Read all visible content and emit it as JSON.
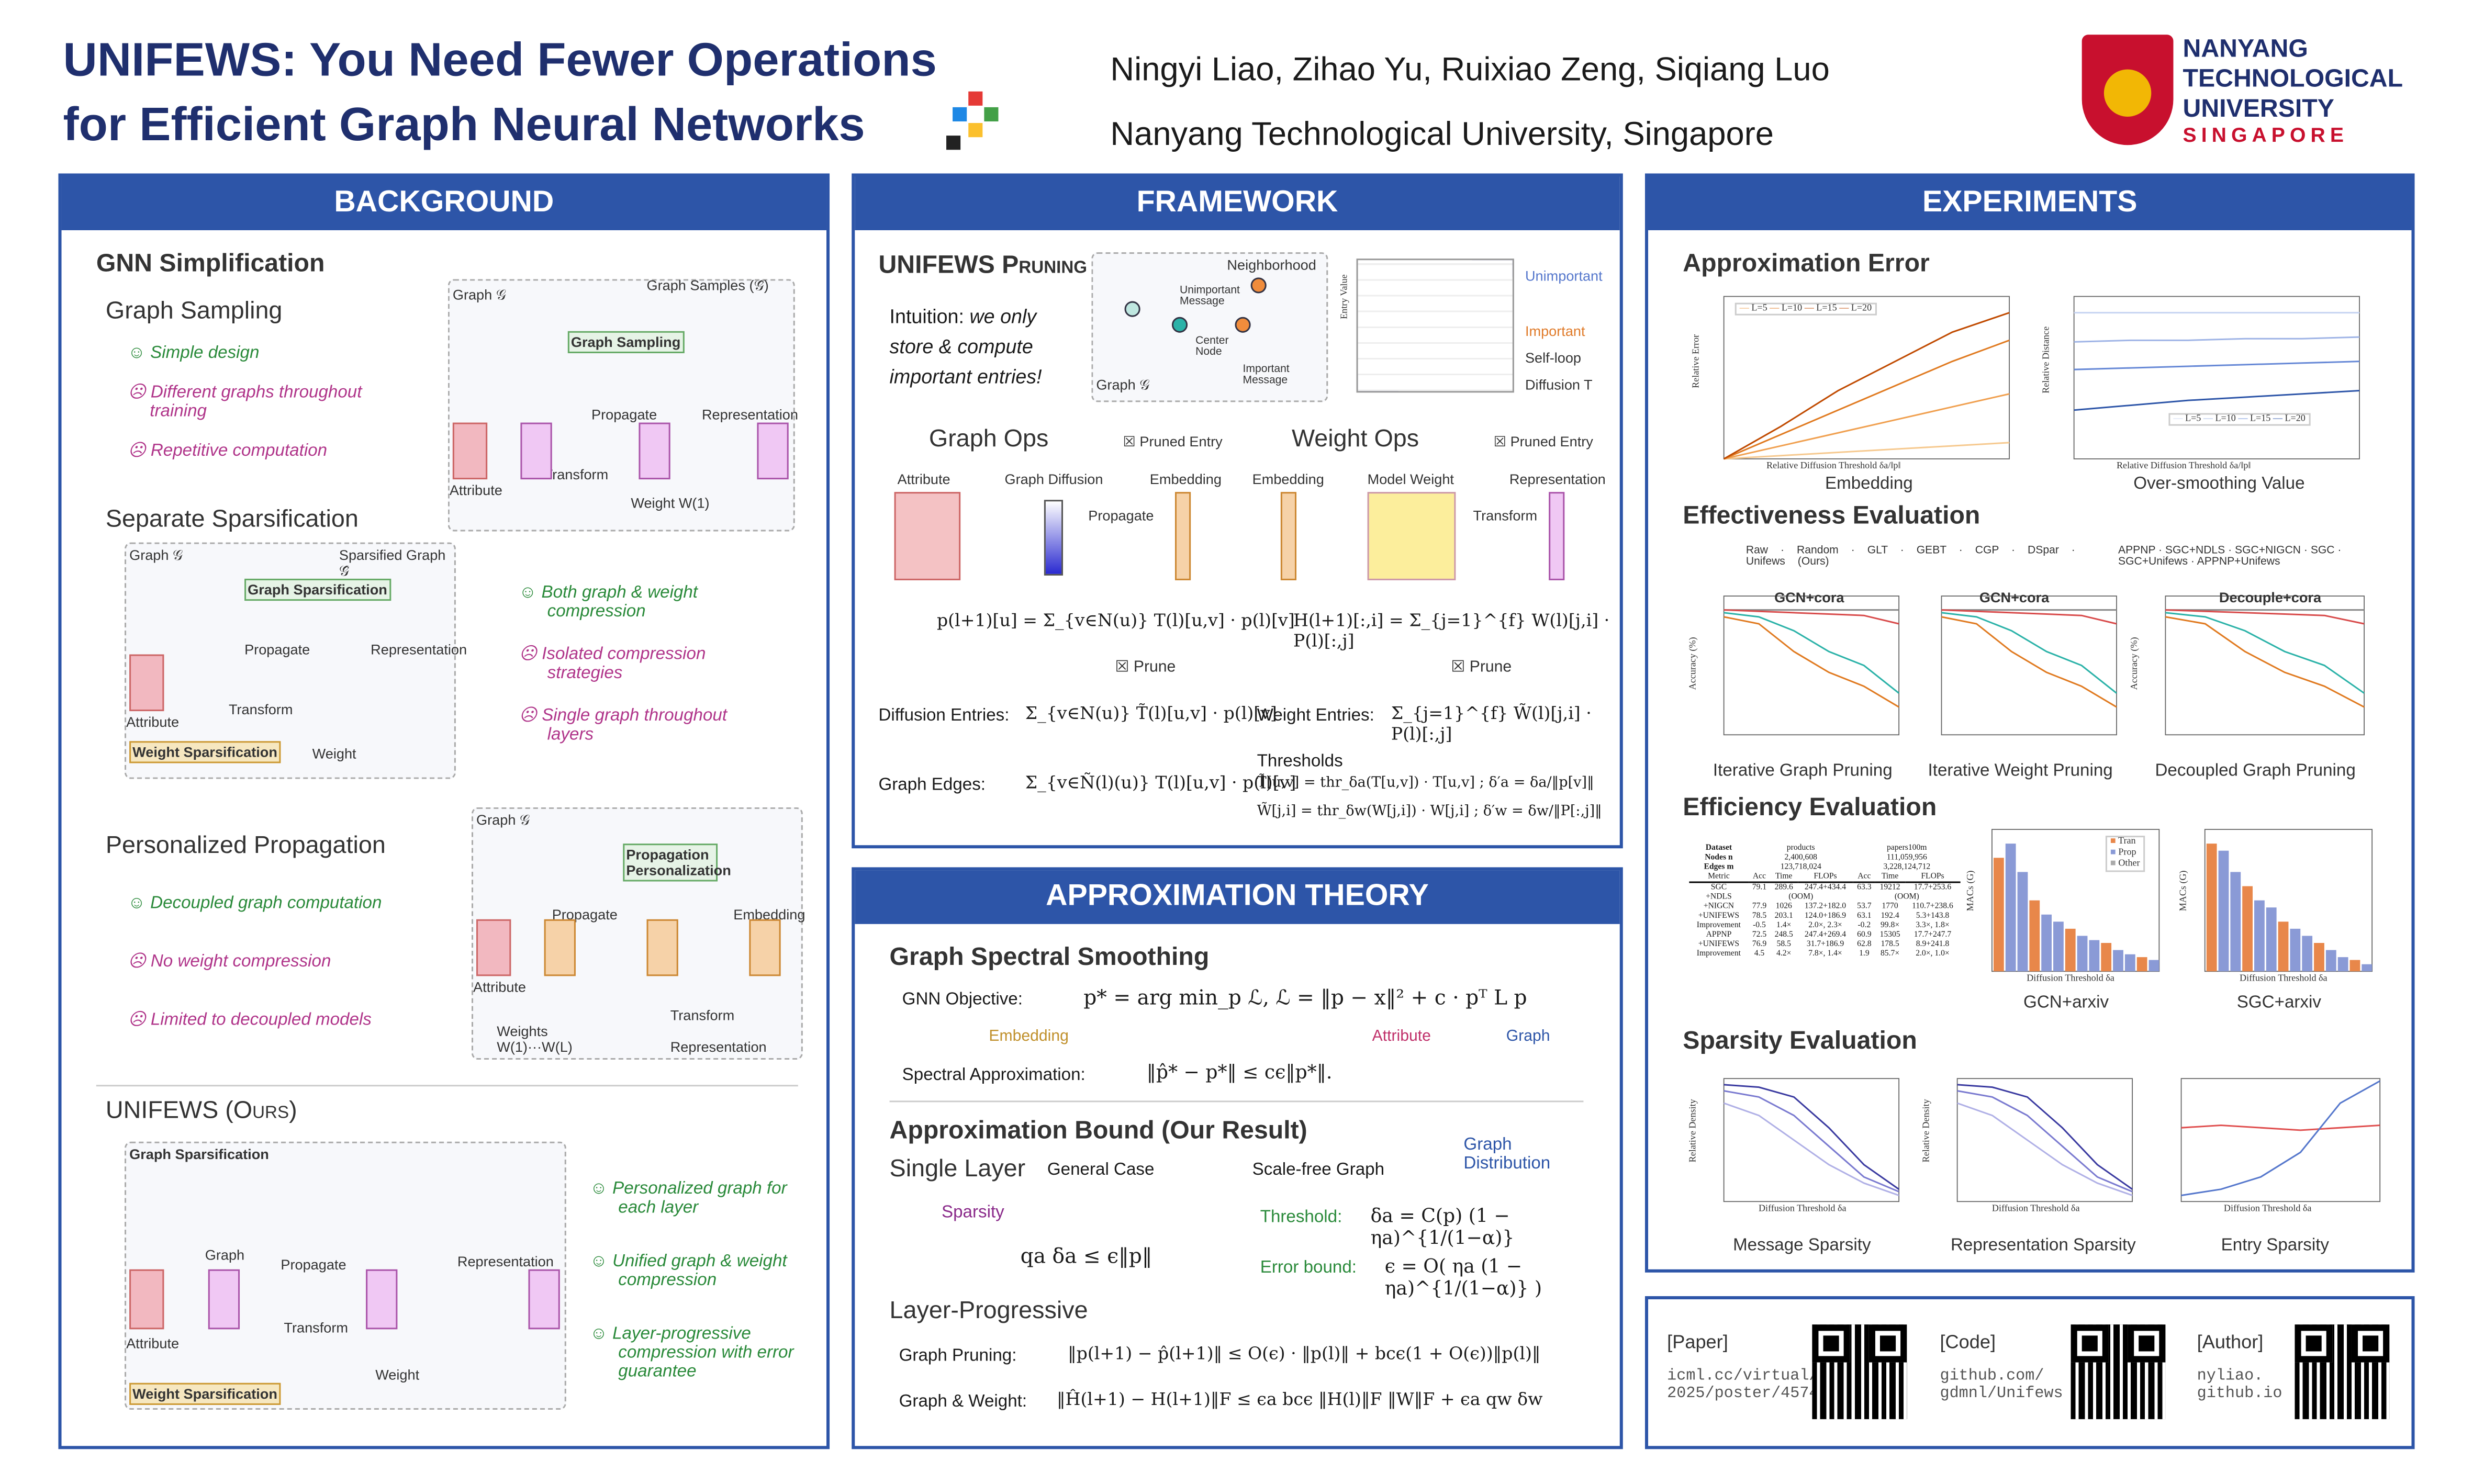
{
  "header": {
    "title_line1": "UNIFEWS: You Need Fewer Operations",
    "title_line2": "for Efficient Graph Neural Networks",
    "authors": "Ningyi Liao,  Zihao Yu,  Ruixiao Zeng,  Siqiang Luo",
    "affiliation": "Nanyang Technological University, Singapore",
    "logo_text": "NANYANG TECHNOLOGICAL UNIVERSITY",
    "logo_sub": "SINGAPORE",
    "colors": {
      "primary": "#2d55a8",
      "title": "#1f2f6e",
      "pro": "#2a8a3a",
      "con": "#b0358a"
    }
  },
  "background": {
    "heading": "BACKGROUND",
    "section": "GNN Simplification",
    "sampling": {
      "title": "Graph Sampling",
      "points": [
        {
          "type": "pro",
          "text": "Simple design"
        },
        {
          "type": "con",
          "text": "Different graphs throughout training"
        },
        {
          "type": "con",
          "text": "Repetitive computation"
        }
      ],
      "fig_labels": [
        "Graph 𝒢",
        "Graph Samples (𝒢̂)",
        "Graph Sampling",
        "Propagate",
        "Representation",
        "Transform",
        "Weight W(1)",
        "Attribute"
      ]
    },
    "separate": {
      "title": "Separate Sparsification",
      "points": [
        {
          "type": "pro",
          "text": "Both graph & weight compression"
        },
        {
          "type": "con",
          "text": "Isolated compression strategies"
        },
        {
          "type": "con",
          "text": "Single graph throughout layers"
        }
      ],
      "fig_labels": [
        "Graph 𝒢",
        "Sparsified Graph 𝒢̂",
        "Graph Sparsification",
        "Weight Sparsification",
        "Propagate",
        "Representation",
        "Transform",
        "Weight",
        "Attribute"
      ]
    },
    "personalized": {
      "title": "Personalized Propagation",
      "points": [
        {
          "type": "pro",
          "text": "Decoupled graph computation"
        },
        {
          "type": "con",
          "text": "No weight compression"
        },
        {
          "type": "con",
          "text": "Limited to decoupled models"
        }
      ],
      "fig_labels": [
        "Graph 𝒢",
        "Propagation Personalization",
        "Propagate",
        "Embedding",
        "Transform",
        "Weights W(1)···W(L)",
        "Representation",
        "Attribute"
      ]
    },
    "ours": {
      "title": "UNIFEWS (Ours)",
      "points": [
        {
          "type": "pro",
          "text": "Personalized graph for each layer"
        },
        {
          "type": "pro",
          "text": "Unified graph & weight compression"
        },
        {
          "type": "pro",
          "text": "Layer-progressive compression with error guarantee"
        }
      ],
      "fig_labels": [
        "Graph Sparsification",
        "Weight Sparsification",
        "Graph",
        "Propagate",
        "Representation",
        "Transform",
        "Weight",
        "Attribute"
      ]
    }
  },
  "framework": {
    "heading": "FRAMEWORK",
    "title": "UNIFEWS Pruning",
    "intuition": {
      "lead": "Intuition:",
      "text": " we only store & compute important entries!"
    },
    "graph_labels": [
      "Neighborhood",
      "Unimportant Message",
      "Center Node",
      "Important Message",
      "Graph 𝒢"
    ],
    "matrix_labels": [
      "Unimportant",
      "Important",
      "Self-loop",
      "Diffusion T",
      "Entry Value"
    ],
    "graph_ops": {
      "title": "Graph Ops",
      "legend": "Pruned Entry",
      "cols": [
        "Attribute",
        "Graph Diffusion",
        "Embedding"
      ],
      "arrow": "Propagate",
      "eq": "p(l+1)[u] = Σ_{v∈N(u)} T(l)[u,v] · p(l)[v]",
      "prune": "Prune",
      "entries_label": "Diffusion Entries:",
      "entries_eq": "Σ_{v∈N(u)} T̃(l)[u,v] · p(l)[v]",
      "edges_label": "Graph Edges:",
      "edges_eq": "Σ_{v∈Ñ(l)(u)} T(l)[u,v] · p(l)[v]"
    },
    "weight_ops": {
      "title": "Weight Ops",
      "legend": "Pruned Entry",
      "cols": [
        "Embedding",
        "Model Weight",
        "Representation"
      ],
      "arrow": "Transform",
      "eq": "H(l+1)[:,i] = Σ_{j=1}^{f} W(l)[j,i] · P(l)[:,j]",
      "prune": "Prune",
      "entries_label": "Weight Entries:",
      "entries_eq": "Σ_{j=1}^{f} W̃(l)[j,i] · P(l)[:,j]",
      "thresholds_label": "Thresholds",
      "th1": "T̃[u,v] = thr_δa(T[u,v]) · T[u,v] ;  δ′a = δa/‖p[v]‖",
      "th2": "W̃[j,i] = thr_δw(W[j,i]) · W[j,i] ;  δ′w = δw/‖P[:,j]‖"
    }
  },
  "theory": {
    "heading": "APPROXIMATION THEORY",
    "smoothing_title": "Graph Spectral Smoothing",
    "objective_label": "GNN Objective:",
    "objective_eq": "p* = arg min_p ℒ,   ℒ = ‖p − x‖² + c · pᵀ L p",
    "ann": [
      "Embedding",
      "Attribute",
      "Graph"
    ],
    "spectral_label": "Spectral Approximation:",
    "spectral_eq": "‖p̂* − p*‖ ≤ cϵ‖p*‖.",
    "bound_title": "Approximation Bound (Our Result)",
    "single_layer": "Single Layer",
    "general": "General Case",
    "scale_free": "Scale-free Graph",
    "graph_distribution": "Graph Distribution",
    "sparsity": "Sparsity",
    "general_eq": "qa δa ≤ ϵ‖p‖",
    "threshold_label": "Threshold:",
    "threshold_eq": "δa = C(p) (1 − ηa)^{1/(1−α)}",
    "error_label": "Error bound:",
    "error_eq": "ϵ = O( ηa (1 − ηa)^{1/(1−α)} )",
    "progressive": "Layer-Progressive",
    "pruning_label": "Graph Pruning:",
    "pruning_eq": "‖p(l+1) − p̂(l+1)‖ ≤ O(ϵ) · ‖p(l)‖ + bcϵ(1 + O(ϵ))‖p(l)‖",
    "gw_label": "Graph & Weight:",
    "gw_eq": "‖Ĥ(l+1) − H(l+1)‖F ≤ ϵa bcϵ ‖H(l)‖F ‖W‖F + ϵa qw δw"
  },
  "experiments": {
    "heading": "EXPERIMENTS",
    "approx": {
      "title": "Approximation Error",
      "captions": [
        "Embedding",
        "Over-smoothing Value"
      ],
      "xlabel": "Relative Diffusion Threshold δa/‖p‖",
      "ylabels": [
        "Relative Error",
        "Relative Distance"
      ],
      "legend": [
        "L=5",
        "L=10",
        "L=15",
        "L=20"
      ]
    },
    "effectiveness": {
      "title": "Effectiveness Evaluation",
      "legend1": [
        "Raw",
        "Random",
        "GLT",
        "GEBT",
        "CGP",
        "DSpar",
        "Unifews (Ours)"
      ],
      "legend2": [
        "APPNP",
        "SGC+NDLS",
        "SGC+NIGCN",
        "SGC",
        "SGC+Unifews",
        "APPNP+Unifews"
      ],
      "plot_titles": [
        "GCN+cora",
        "GCN+cora",
        "Decouple+cora"
      ],
      "captions": [
        "Iterative Graph Pruning",
        "Iterative Weight Pruning",
        "Decoupled Graph Pruning"
      ],
      "ylabel": "Accuracy (%)"
    },
    "efficiency": {
      "title": "Efficiency Evaluation",
      "table": {
        "head": [
          [
            "Dataset",
            "products",
            "papers100m"
          ],
          [
            "Nodes n",
            "2,400,608",
            "111,059,956"
          ],
          [
            "Edges m",
            "123,718,024",
            "3,228,124,712"
          ]
        ],
        "metric": [
          "Metric",
          "Acc",
          "Time",
          "FLOPs",
          "Acc",
          "Time",
          "FLOPs"
        ],
        "rows": [
          [
            "SGC",
            "79.1",
            "289.6",
            "247.4+434.4",
            "63.3",
            "19212",
            "17.7+253.6"
          ],
          [
            "+NDLS",
            "(OOM)",
            "(OOM)"
          ],
          [
            "+NIGCN",
            "77.9",
            "1026",
            "137.2+182.0",
            "53.7",
            "1770",
            "110.7+238.6"
          ],
          [
            "+UNIFEWS",
            "78.5",
            "203.1",
            "124.0+186.9",
            "63.1",
            "192.4",
            "5.3+143.8"
          ],
          [
            "Improvement",
            "-0.5",
            "1.4×",
            "2.0×, 2.3×",
            "-0.2",
            "99.8×",
            "3.3×, 1.8×"
          ],
          [
            "APPNP",
            "72.5",
            "248.5",
            "247.4+269.4",
            "60.9",
            "15305",
            "17.7+247.7"
          ],
          [
            "+UNIFEWS",
            "76.9",
            "58.5",
            "31.7+186.9",
            "62.8",
            "178.5",
            "8.9+241.8"
          ],
          [
            "Improvement",
            "4.5",
            "4.2×",
            "7.8×, 1.4×",
            "1.9",
            "85.7×",
            "2.0×, 1.0×"
          ]
        ]
      },
      "captions": [
        "GCN+arxiv",
        "SGC+arxiv"
      ],
      "bar_legend": [
        "Tran",
        "Prop",
        "Other"
      ],
      "ylabel": "MACs (G)",
      "xlabel": "Diffusion Threshold δa"
    },
    "sparsity": {
      "title": "Sparsity Evaluation",
      "captions": [
        "Message Sparsity",
        "Representation Sparsity",
        "Entry Sparsity"
      ],
      "ylabel": "Relative Density",
      "xlabel": "Diffusion Threshold δa"
    }
  },
  "links": [
    {
      "label": "[Paper]",
      "url": "icml.cc/virtual/ 2025/poster/45740"
    },
    {
      "label": "[Code]",
      "url": "github.com/ gdmnl/Unifews"
    },
    {
      "label": "[Author]",
      "url": "nyliao. github.io"
    }
  ]
}
